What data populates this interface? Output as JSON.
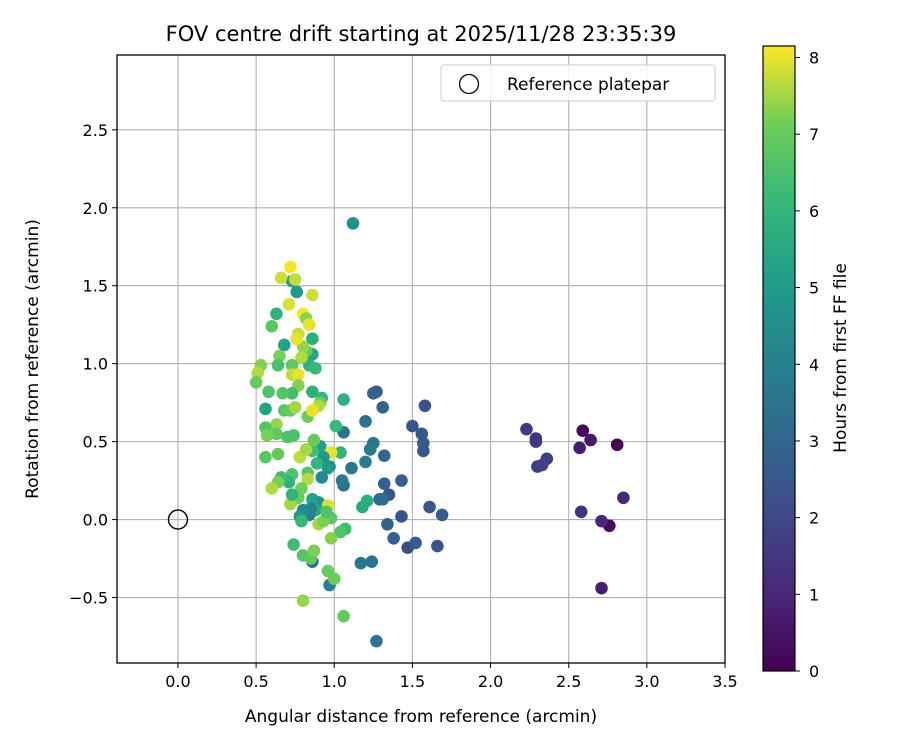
{
  "chart_data": {
    "type": "scatter",
    "title": "FOV centre drift starting at 2025/11/28 23:35:39",
    "xlabel": "Angular distance from reference (arcmin)",
    "ylabel": "Rotation from reference (arcmin)",
    "xlim": [
      -0.39,
      3.5
    ],
    "ylim": [
      -0.92,
      2.98
    ],
    "x_ticks": [
      "0.0",
      "0.5",
      "1.0",
      "1.5",
      "2.0",
      "2.5",
      "3.0",
      "3.5"
    ],
    "y_ticks": [
      "−0.5",
      "0.0",
      "0.5",
      "1.0",
      "1.5",
      "2.0",
      "2.5"
    ],
    "grid": true,
    "legend": {
      "position": "top-right",
      "entries": [
        "Reference platepar"
      ]
    },
    "reference_point": {
      "x": 0.0,
      "y": 0.0,
      "label": "Reference platepar"
    },
    "colorbar": {
      "label": "Hours from first FF file",
      "range": [
        0,
        8.15
      ],
      "ticks": [
        "0",
        "1",
        "2",
        "3",
        "4",
        "5",
        "6",
        "7",
        "8"
      ],
      "colormap": "viridis"
    },
    "points": [
      {
        "x": 2.81,
        "y": 0.48,
        "h": 0.05
      },
      {
        "x": 2.59,
        "y": 0.57,
        "h": 0.1
      },
      {
        "x": 2.76,
        "y": -0.04,
        "h": 0.15
      },
      {
        "x": 2.71,
        "y": -0.44,
        "h": 0.8
      },
      {
        "x": 2.64,
        "y": 0.51,
        "h": 0.6
      },
      {
        "x": 2.57,
        "y": 0.46,
        "h": 0.7
      },
      {
        "x": 2.71,
        "y": -0.01,
        "h": 1.0
      },
      {
        "x": 2.85,
        "y": 0.14,
        "h": 1.1
      },
      {
        "x": 2.58,
        "y": 0.05,
        "h": 1.3
      },
      {
        "x": 2.23,
        "y": 0.58,
        "h": 1.5
      },
      {
        "x": 2.29,
        "y": 0.5,
        "h": 1.6
      },
      {
        "x": 2.29,
        "y": 0.52,
        "h": 1.4
      },
      {
        "x": 2.36,
        "y": 0.39,
        "h": 1.7
      },
      {
        "x": 2.3,
        "y": 0.34,
        "h": 1.6
      },
      {
        "x": 2.33,
        "y": 0.35,
        "h": 1.8
      },
      {
        "x": 1.66,
        "y": -0.17,
        "h": 2.3
      },
      {
        "x": 1.69,
        "y": 0.03,
        "h": 2.6
      },
      {
        "x": 1.61,
        "y": 0.08,
        "h": 2.4
      },
      {
        "x": 1.58,
        "y": 0.73,
        "h": 2.3
      },
      {
        "x": 1.5,
        "y": 0.6,
        "h": 2.4
      },
      {
        "x": 1.56,
        "y": 0.55,
        "h": 2.5
      },
      {
        "x": 1.57,
        "y": 0.49,
        "h": 2.6
      },
      {
        "x": 1.57,
        "y": 0.44,
        "h": 2.5
      },
      {
        "x": 1.47,
        "y": -0.18,
        "h": 2.2
      },
      {
        "x": 1.52,
        "y": -0.15,
        "h": 2.6
      },
      {
        "x": 1.43,
        "y": 0.02,
        "h": 2.4
      },
      {
        "x": 1.43,
        "y": 0.25,
        "h": 2.7
      },
      {
        "x": 1.38,
        "y": -0.12,
        "h": 2.8
      },
      {
        "x": 1.34,
        "y": -0.03,
        "h": 2.9
      },
      {
        "x": 1.35,
        "y": 0.16,
        "h": 2.4
      },
      {
        "x": 1.32,
        "y": 0.23,
        "h": 2.8
      },
      {
        "x": 1.32,
        "y": 0.41,
        "h": 3.0
      },
      {
        "x": 1.31,
        "y": 0.72,
        "h": 2.9
      },
      {
        "x": 1.27,
        "y": 0.82,
        "h": 2.7
      },
      {
        "x": 1.25,
        "y": 0.81,
        "h": 2.9
      },
      {
        "x": 1.31,
        "y": 0.13,
        "h": 3.1
      },
      {
        "x": 1.29,
        "y": 0.13,
        "h": 3.2
      },
      {
        "x": 1.24,
        "y": -0.27,
        "h": 3.5
      },
      {
        "x": 1.17,
        "y": -0.28,
        "h": 3.7
      },
      {
        "x": 1.27,
        "y": -0.78,
        "h": 3.6
      },
      {
        "x": 1.12,
        "y": 1.9,
        "h": 4.6
      },
      {
        "x": 1.2,
        "y": 0.63,
        "h": 3.4
      },
      {
        "x": 1.25,
        "y": 0.49,
        "h": 3.6
      },
      {
        "x": 1.23,
        "y": 0.45,
        "h": 3.8
      },
      {
        "x": 1.2,
        "y": 0.37,
        "h": 3.9
      },
      {
        "x": 1.11,
        "y": 0.33,
        "h": 3.7
      },
      {
        "x": 1.06,
        "y": 0.56,
        "h": 3.5
      },
      {
        "x": 1.06,
        "y": 0.22,
        "h": 3.3
      },
      {
        "x": 1.05,
        "y": 0.25,
        "h": 3.8
      },
      {
        "x": 0.86,
        "y": -0.27,
        "h": 3.5
      },
      {
        "x": 0.97,
        "y": -0.42,
        "h": 4.0
      },
      {
        "x": 1.21,
        "y": 0.12,
        "h": 5.8
      },
      {
        "x": 1.18,
        "y": 0.08,
        "h": 5.6
      },
      {
        "x": 1.07,
        "y": -0.06,
        "h": 6.3
      },
      {
        "x": 1.04,
        "y": -0.08,
        "h": 6.6
      },
      {
        "x": 1.04,
        "y": 0.43,
        "h": 6.0
      },
      {
        "x": 1.01,
        "y": 0.6,
        "h": 6.2
      },
      {
        "x": 1.06,
        "y": 0.77,
        "h": 5.9
      },
      {
        "x": 1.06,
        "y": -0.62,
        "h": 6.9
      },
      {
        "x": 1.0,
        "y": -0.38,
        "h": 7.1
      },
      {
        "x": 0.98,
        "y": -0.12,
        "h": 7.3
      },
      {
        "x": 0.98,
        "y": 0.01,
        "h": 6.8
      },
      {
        "x": 0.96,
        "y": -0.33,
        "h": 7.0
      },
      {
        "x": 0.98,
        "y": 0.43,
        "h": 8.0
      },
      {
        "x": 0.97,
        "y": 0.34,
        "h": 4.5
      },
      {
        "x": 0.93,
        "y": 0.4,
        "h": 4.8
      },
      {
        "x": 0.91,
        "y": 0.47,
        "h": 5.2
      },
      {
        "x": 0.96,
        "y": 0.33,
        "h": 5.0
      },
      {
        "x": 0.92,
        "y": 0.27,
        "h": 4.3
      },
      {
        "x": 0.9,
        "y": 0.11,
        "h": 4.6
      },
      {
        "x": 0.88,
        "y": 0.06,
        "h": 5.5
      },
      {
        "x": 0.86,
        "y": 0.13,
        "h": 5.3
      },
      {
        "x": 0.85,
        "y": 0.07,
        "h": 4.2
      },
      {
        "x": 0.84,
        "y": 0.03,
        "h": 4.0
      },
      {
        "x": 0.8,
        "y": 0.06,
        "h": 4.4
      },
      {
        "x": 0.78,
        "y": 0.02,
        "h": 5.0
      },
      {
        "x": 0.79,
        "y": -0.01,
        "h": 6.2
      },
      {
        "x": 0.8,
        "y": -0.23,
        "h": 6.7
      },
      {
        "x": 0.85,
        "y": -0.25,
        "h": 6.9
      },
      {
        "x": 0.87,
        "y": -0.2,
        "h": 7.2
      },
      {
        "x": 0.74,
        "y": -0.16,
        "h": 6.3
      },
      {
        "x": 0.8,
        "y": -0.52,
        "h": 7.4
      },
      {
        "x": 0.9,
        "y": -0.03,
        "h": 7.5
      },
      {
        "x": 0.93,
        "y": -0.01,
        "h": 7.2
      },
      {
        "x": 0.96,
        "y": 0.09,
        "h": 7.9
      },
      {
        "x": 0.95,
        "y": 0.05,
        "h": 6.6
      },
      {
        "x": 0.89,
        "y": 0.36,
        "h": 6.0
      },
      {
        "x": 0.86,
        "y": 0.44,
        "h": 6.4
      },
      {
        "x": 0.87,
        "y": 0.51,
        "h": 7.0
      },
      {
        "x": 0.83,
        "y": 0.66,
        "h": 7.1
      },
      {
        "x": 0.86,
        "y": 0.82,
        "h": 5.8
      },
      {
        "x": 0.92,
        "y": 0.78,
        "h": 6.1
      },
      {
        "x": 0.91,
        "y": 0.75,
        "h": 7.0
      },
      {
        "x": 0.9,
        "y": 0.73,
        "h": 7.6
      },
      {
        "x": 0.86,
        "y": 0.7,
        "h": 8.0
      },
      {
        "x": 0.84,
        "y": 0.99,
        "h": 5.9
      },
      {
        "x": 0.88,
        "y": 0.97,
        "h": 6.2
      },
      {
        "x": 0.86,
        "y": 1.06,
        "h": 5.4
      },
      {
        "x": 0.86,
        "y": 1.16,
        "h": 5.8
      },
      {
        "x": 0.82,
        "y": 1.08,
        "h": 7.0
      },
      {
        "x": 0.8,
        "y": 1.11,
        "h": 7.4
      },
      {
        "x": 0.79,
        "y": 1.04,
        "h": 7.6
      },
      {
        "x": 0.77,
        "y": 1.19,
        "h": 7.7
      },
      {
        "x": 0.76,
        "y": 1.16,
        "h": 8.0
      },
      {
        "x": 0.8,
        "y": 1.32,
        "h": 8.1
      },
      {
        "x": 0.82,
        "y": 1.29,
        "h": 7.3
      },
      {
        "x": 0.84,
        "y": 1.25,
        "h": 8.0
      },
      {
        "x": 0.86,
        "y": 1.44,
        "h": 7.8
      },
      {
        "x": 0.76,
        "y": 1.46,
        "h": 4.9
      },
      {
        "x": 0.73,
        "y": 1.53,
        "h": 5.1
      },
      {
        "x": 0.75,
        "y": 1.54,
        "h": 7.7
      },
      {
        "x": 0.72,
        "y": 1.62,
        "h": 8.1
      },
      {
        "x": 0.66,
        "y": 1.55,
        "h": 7.8
      },
      {
        "x": 0.71,
        "y": 1.38,
        "h": 7.9
      },
      {
        "x": 0.63,
        "y": 1.32,
        "h": 5.9
      },
      {
        "x": 0.6,
        "y": 1.24,
        "h": 6.8
      },
      {
        "x": 0.68,
        "y": 1.12,
        "h": 5.3
      },
      {
        "x": 0.65,
        "y": 1.05,
        "h": 7.2
      },
      {
        "x": 0.64,
        "y": 0.99,
        "h": 6.5
      },
      {
        "x": 0.73,
        "y": 0.99,
        "h": 6.9
      },
      {
        "x": 0.73,
        "y": 0.93,
        "h": 7.7
      },
      {
        "x": 0.77,
        "y": 0.93,
        "h": 8.0
      },
      {
        "x": 0.77,
        "y": 0.86,
        "h": 7.3
      },
      {
        "x": 0.73,
        "y": 0.81,
        "h": 6.4
      },
      {
        "x": 0.67,
        "y": 0.81,
        "h": 6.7
      },
      {
        "x": 0.58,
        "y": 0.82,
        "h": 6.6
      },
      {
        "x": 0.53,
        "y": 0.99,
        "h": 7.3
      },
      {
        "x": 0.51,
        "y": 0.94,
        "h": 7.6
      },
      {
        "x": 0.5,
        "y": 0.88,
        "h": 7.0
      },
      {
        "x": 0.56,
        "y": 0.71,
        "h": 5.3
      },
      {
        "x": 0.63,
        "y": 0.61,
        "h": 7.4
      },
      {
        "x": 0.63,
        "y": 0.55,
        "h": 6.9
      },
      {
        "x": 0.56,
        "y": 0.59,
        "h": 6.7
      },
      {
        "x": 0.57,
        "y": 0.54,
        "h": 7.2
      },
      {
        "x": 0.64,
        "y": 0.42,
        "h": 7.0
      },
      {
        "x": 0.56,
        "y": 0.4,
        "h": 6.8
      },
      {
        "x": 0.68,
        "y": 0.7,
        "h": 6.8
      },
      {
        "x": 0.72,
        "y": 0.7,
        "h": 7.0
      },
      {
        "x": 0.75,
        "y": 0.72,
        "h": 7.5
      },
      {
        "x": 0.72,
        "y": 0.53,
        "h": 7.8
      },
      {
        "x": 0.7,
        "y": 0.53,
        "h": 6.6
      },
      {
        "x": 0.78,
        "y": 0.4,
        "h": 7.7
      },
      {
        "x": 0.82,
        "y": 0.45,
        "h": 7.5
      },
      {
        "x": 0.83,
        "y": 0.3,
        "h": 6.7
      },
      {
        "x": 0.83,
        "y": 0.26,
        "h": 7.6
      },
      {
        "x": 0.79,
        "y": 0.2,
        "h": 7.1
      },
      {
        "x": 0.77,
        "y": 0.14,
        "h": 7.0
      },
      {
        "x": 0.72,
        "y": 0.1,
        "h": 7.5
      },
      {
        "x": 0.73,
        "y": 0.29,
        "h": 6.6
      },
      {
        "x": 0.71,
        "y": 0.24,
        "h": 5.9
      },
      {
        "x": 0.66,
        "y": 0.27,
        "h": 6.3
      },
      {
        "x": 0.64,
        "y": 0.24,
        "h": 7.2
      },
      {
        "x": 0.6,
        "y": 0.2,
        "h": 7.6
      },
      {
        "x": 0.73,
        "y": 0.16,
        "h": 6.0
      },
      {
        "x": 0.74,
        "y": 0.54,
        "h": 6.5
      }
    ]
  }
}
